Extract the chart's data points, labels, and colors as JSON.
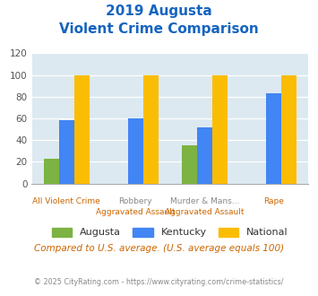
{
  "title_line1": "2019 Augusta",
  "title_line2": "Violent Crime Comparison",
  "title_color": "#1565c0",
  "groups": [
    {
      "top_label": "",
      "bottom_label": "All Violent Crime",
      "augusta": 23,
      "kentucky": 58,
      "national": 100
    },
    {
      "top_label": "Robbery",
      "bottom_label": "Aggravated Assault",
      "augusta": 0,
      "kentucky": 60,
      "national": 100
    },
    {
      "top_label": "Murder & Mans...",
      "bottom_label": "Aggravated Assault",
      "augusta": 35,
      "kentucky": 52,
      "national": 100
    },
    {
      "top_label": "",
      "bottom_label": "Rape",
      "augusta": 0,
      "kentucky": 83,
      "national": 100
    }
  ],
  "bar_colors": {
    "augusta": "#7cb342",
    "kentucky": "#4285f4",
    "national": "#fbbc04"
  },
  "ylim": [
    0,
    120
  ],
  "yticks": [
    0,
    20,
    40,
    60,
    80,
    100,
    120
  ],
  "background_color": "#dce9f0",
  "legend_labels": [
    "Augusta",
    "Kentucky",
    "National"
  ],
  "footnote1": "Compared to U.S. average. (U.S. average equals 100)",
  "footnote2": "© 2025 CityRating.com - https://www.cityrating.com/crime-statistics/",
  "footnote1_color": "#cc6600",
  "footnote2_color": "#888888",
  "top_label_color": "#888888",
  "bottom_label_color": "#cc6600"
}
